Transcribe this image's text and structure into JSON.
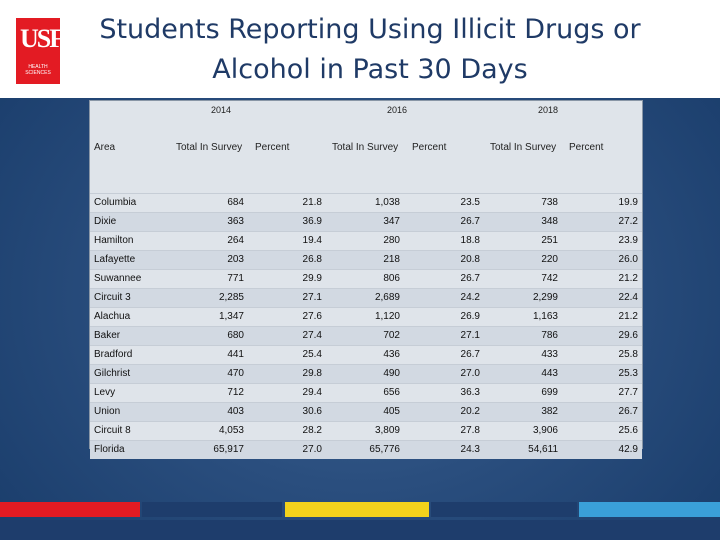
{
  "title": "Students Reporting Using Illicit Drugs or Alcohol in Past 30 Days",
  "logo": {
    "text": "USF",
    "subtitle": "HEALTH SCIENCES",
    "color": "#e31b23"
  },
  "table": {
    "years": [
      "2014",
      "2016",
      "2018"
    ],
    "area_header": "Area",
    "col_total": "Total In Survey",
    "col_percent": "Percent",
    "rows": [
      {
        "area": "Columbia",
        "v": [
          "684",
          "21.8",
          "1,038",
          "23.5",
          "738",
          "19.9"
        ]
      },
      {
        "area": "Dixie",
        "v": [
          "363",
          "36.9",
          "347",
          "26.7",
          "348",
          "27.2"
        ]
      },
      {
        "area": "Hamilton",
        "v": [
          "264",
          "19.4",
          "280",
          "18.8",
          "251",
          "23.9"
        ]
      },
      {
        "area": "Lafayette",
        "v": [
          "203",
          "26.8",
          "218",
          "20.8",
          "220",
          "26.0"
        ]
      },
      {
        "area": "Suwannee",
        "v": [
          "771",
          "29.9",
          "806",
          "26.7",
          "742",
          "21.2"
        ]
      },
      {
        "area": "Circuit 3",
        "v": [
          "2,285",
          "27.1",
          "2,689",
          "24.2",
          "2,299",
          "22.4"
        ]
      },
      {
        "area": "Alachua",
        "v": [
          "1,347",
          "27.6",
          "1,120",
          "26.9",
          "1,163",
          "21.2"
        ]
      },
      {
        "area": "Baker",
        "v": [
          "680",
          "27.4",
          "702",
          "27.1",
          "786",
          "29.6"
        ]
      },
      {
        "area": "Bradford",
        "v": [
          "441",
          "25.4",
          "436",
          "26.7",
          "433",
          "25.8"
        ]
      },
      {
        "area": "Gilchrist",
        "v": [
          "470",
          "29.8",
          "490",
          "27.0",
          "443",
          "25.3"
        ]
      },
      {
        "area": "Levy",
        "v": [
          "712",
          "29.4",
          "656",
          "36.3",
          "699",
          "27.7"
        ]
      },
      {
        "area": "Union",
        "v": [
          "403",
          "30.6",
          "405",
          "20.2",
          "382",
          "26.7"
        ]
      },
      {
        "area": "Circuit 8",
        "v": [
          "4,053",
          "28.2",
          "3,809",
          "27.8",
          "3,906",
          "25.6"
        ]
      },
      {
        "area": "Florida",
        "v": [
          "65,917",
          "27.0",
          "65,776",
          "24.3",
          "54,611",
          "42.9"
        ]
      }
    ]
  },
  "colors": {
    "background": "#2a4e7e",
    "title": "#1f3a66",
    "stripes": [
      "#e31b23",
      "#1e3d6c",
      "#f3d21c",
      "#1e3d6c",
      "#3aa0d9"
    ]
  }
}
